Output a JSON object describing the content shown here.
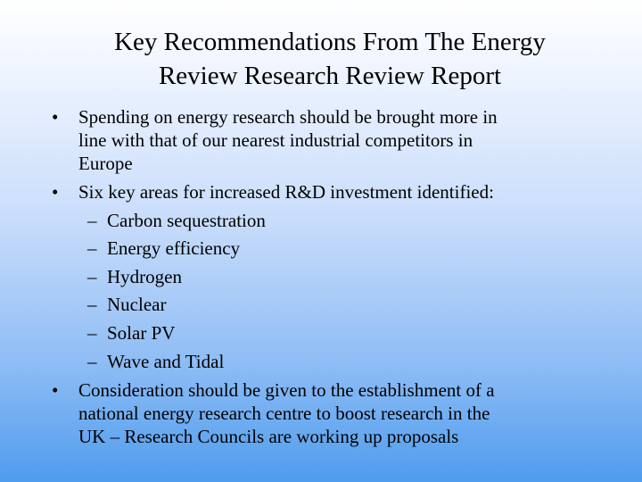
{
  "slide": {
    "title_lines": [
      "Key Recommendations From The Energy",
      "Review Research Review Report"
    ],
    "bullet_marker": "•",
    "sub_marker": "–",
    "bullets": [
      {
        "lines": [
          "Spending on energy research should be brought more in",
          "line with that of our nearest industrial competitors in",
          "Europe"
        ]
      },
      {
        "lines": [
          "Six key areas for increased R&D investment identified:"
        ],
        "sub_items": [
          "Carbon sequestration",
          "Energy efficiency",
          "Hydrogen",
          "Nuclear",
          "Solar PV",
          "Wave and Tidal"
        ]
      },
      {
        "lines": [
          "Consideration should be given to the establishment of a",
          "national energy research centre to boost research in the",
          "UK – Research Councils are working up proposals"
        ]
      }
    ]
  }
}
